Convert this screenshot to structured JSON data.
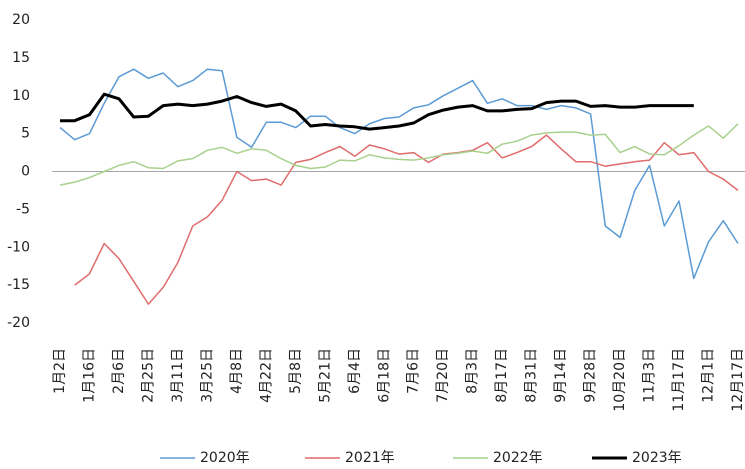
{
  "chart_data": {
    "type": "line",
    "categories": [
      "1月2日",
      null,
      "1月16日",
      null,
      "2月6日",
      null,
      "2月25日",
      null,
      "3月11日",
      null,
      "3月25日",
      null,
      "4月8日",
      null,
      "4月22日",
      null,
      "5月8日",
      null,
      "5月21日",
      null,
      "6月4日",
      null,
      "6月18日",
      null,
      "7月6日",
      null,
      "7月20日",
      null,
      "8月3日",
      null,
      "8月17日",
      null,
      "8月31日",
      null,
      "9月14日",
      null,
      "9月28日",
      null,
      "10月20日",
      null,
      "11月3日",
      null,
      "11月17日",
      null,
      "12月1日",
      null,
      "12月17日"
    ],
    "series": [
      {
        "name": "2020年",
        "color": "#5b9bd5",
        "values": [
          5.8,
          4.2,
          5.0,
          9,
          12.5,
          13.5,
          12.3,
          13,
          11.2,
          12,
          13.5,
          13.3,
          4.5,
          3.2,
          6.5,
          6.5,
          5.8,
          7.3,
          7.3,
          5.8,
          5.0,
          6.3,
          7.0,
          7.2,
          8.4,
          8.8,
          10,
          11,
          12,
          9,
          9.6,
          8.7,
          8.7,
          8.2,
          8.7,
          8.4,
          7.6,
          -7.2,
          -8.7,
          -2.5,
          0.8,
          -7.2,
          -3.9,
          -14.1,
          -9.3,
          -6.5,
          -9.5
        ]
      },
      {
        "name": "2021年",
        "color": "#e06c6c",
        "values": [
          null,
          -15,
          -13.5,
          -9.5,
          -11.5,
          -14.5,
          -17.5,
          -15.3,
          -12,
          -7.2,
          -6,
          -3.8,
          0,
          -1.2,
          -1,
          -1.8,
          1.2,
          1.6,
          2.5,
          3.3,
          2.0,
          3.5,
          3.0,
          2.3,
          2.5,
          1.2,
          2.3,
          2.5,
          2.8,
          3.8,
          1.8,
          2.5,
          3.3,
          4.8,
          3.0,
          1.3,
          1.3,
          0.7,
          1.0,
          1.3,
          1.5,
          3.8,
          2.2,
          2.5,
          0,
          -1.0,
          -2.5
        ]
      },
      {
        "name": "2022年",
        "color": "#a9d18e",
        "values": [
          -1.8,
          -1.4,
          -0.8,
          0,
          0.8,
          1.3,
          0.5,
          0.4,
          1.4,
          1.7,
          2.8,
          3.2,
          2.4,
          3.0,
          2.8,
          1.7,
          0.8,
          0.4,
          0.6,
          1.5,
          1.4,
          2.2,
          1.8,
          1.6,
          1.5,
          1.8,
          2.2,
          2.4,
          2.7,
          2.4,
          3.6,
          4.0,
          4.8,
          5.1,
          5.2,
          5.2,
          4.8,
          4.9,
          2.5,
          3.3,
          2.3,
          2.2,
          3.4,
          4.8,
          6.0,
          4.4,
          6.3
        ]
      },
      {
        "name": "2023年",
        "color": "#000000",
        "values": [
          6.7,
          6.7,
          7.5,
          10.2,
          9.6,
          7.2,
          7.3,
          8.7,
          8.9,
          8.7,
          8.9,
          9.3,
          9.9,
          9.1,
          8.6,
          8.9,
          8.0,
          6.0,
          6.2,
          6.0,
          5.9,
          5.6,
          5.8,
          6.0,
          6.4,
          7.5,
          8.1,
          8.5,
          8.7,
          8.0,
          8.0,
          8.2,
          8.3,
          9.1,
          9.3,
          9.3,
          8.6,
          8.7,
          8.5,
          8.5,
          8.7,
          8.7,
          8.7,
          8.7,
          null,
          null,
          null
        ]
      }
    ],
    "ylim": [
      -20,
      20
    ],
    "yticks": [
      -20,
      -15,
      -10,
      -5,
      0,
      5,
      10,
      15,
      20
    ],
    "legend": "bottom",
    "grid": false
  }
}
